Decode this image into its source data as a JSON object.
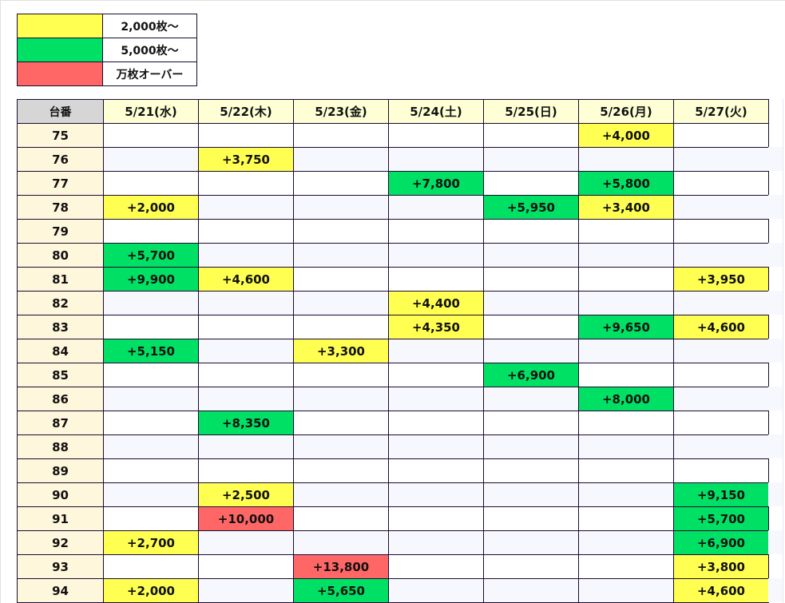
{
  "legend": [
    {
      "color": "#ffff52",
      "label": "2,000枚～"
    },
    {
      "color": "#00e064",
      "label": "5,000枚～"
    },
    {
      "color": "#ff6666",
      "label": "万枚オーバー"
    }
  ],
  "table": {
    "corner": "台番",
    "dates": [
      "5/21(水)",
      "5/22(木)",
      "5/23(金)",
      "5/24(土)",
      "5/25(日)",
      "5/26(月)",
      "5/27(火)"
    ],
    "rows": [
      {
        "no": "75",
        "cells": [
          [
            "",
            ""
          ],
          [
            "",
            ""
          ],
          [
            "",
            ""
          ],
          [
            "",
            ""
          ],
          [
            "",
            ""
          ],
          [
            "+4,000",
            "yellow"
          ],
          [
            "",
            ""
          ]
        ]
      },
      {
        "no": "76",
        "cells": [
          [
            "",
            ""
          ],
          [
            "+3,750",
            "yellow"
          ],
          [
            "",
            ""
          ],
          [
            "",
            ""
          ],
          [
            "",
            ""
          ],
          [
            "",
            ""
          ],
          [
            "",
            ""
          ]
        ]
      },
      {
        "no": "77",
        "cells": [
          [
            "",
            ""
          ],
          [
            "",
            ""
          ],
          [
            "",
            ""
          ],
          [
            "+7,800",
            "green"
          ],
          [
            "",
            ""
          ],
          [
            "+5,800",
            "green"
          ],
          [
            "",
            ""
          ]
        ]
      },
      {
        "no": "78",
        "cells": [
          [
            "+2,000",
            "yellow"
          ],
          [
            "",
            ""
          ],
          [
            "",
            ""
          ],
          [
            "",
            ""
          ],
          [
            "+5,950",
            "green"
          ],
          [
            "+3,400",
            "yellow"
          ],
          [
            "",
            ""
          ]
        ]
      },
      {
        "no": "79",
        "cells": [
          [
            "",
            ""
          ],
          [
            "",
            ""
          ],
          [
            "",
            ""
          ],
          [
            "",
            ""
          ],
          [
            "",
            ""
          ],
          [
            "",
            ""
          ],
          [
            "",
            ""
          ]
        ]
      },
      {
        "no": "80",
        "cells": [
          [
            "+5,700",
            "green"
          ],
          [
            "",
            ""
          ],
          [
            "",
            ""
          ],
          [
            "",
            ""
          ],
          [
            "",
            ""
          ],
          [
            "",
            ""
          ],
          [
            "",
            ""
          ]
        ]
      },
      {
        "no": "81",
        "cells": [
          [
            "+9,900",
            "green"
          ],
          [
            "+4,600",
            "yellow"
          ],
          [
            "",
            ""
          ],
          [
            "",
            ""
          ],
          [
            "",
            ""
          ],
          [
            "",
            ""
          ],
          [
            "+3,950",
            "yellow"
          ]
        ]
      },
      {
        "no": "82",
        "cells": [
          [
            "",
            ""
          ],
          [
            "",
            ""
          ],
          [
            "",
            ""
          ],
          [
            "+4,400",
            "yellow"
          ],
          [
            "",
            ""
          ],
          [
            "",
            ""
          ],
          [
            "",
            ""
          ]
        ]
      },
      {
        "no": "83",
        "cells": [
          [
            "",
            ""
          ],
          [
            "",
            ""
          ],
          [
            "",
            ""
          ],
          [
            "+4,350",
            "yellow"
          ],
          [
            "",
            ""
          ],
          [
            "+9,650",
            "green"
          ],
          [
            "+4,600",
            "yellow"
          ]
        ]
      },
      {
        "no": "84",
        "cells": [
          [
            "+5,150",
            "green"
          ],
          [
            "",
            ""
          ],
          [
            "+3,300",
            "yellow"
          ],
          [
            "",
            ""
          ],
          [
            "",
            ""
          ],
          [
            "",
            ""
          ],
          [
            "",
            ""
          ]
        ]
      },
      {
        "no": "85",
        "cells": [
          [
            "",
            ""
          ],
          [
            "",
            ""
          ],
          [
            "",
            ""
          ],
          [
            "",
            ""
          ],
          [
            "+6,900",
            "green"
          ],
          [
            "",
            ""
          ],
          [
            "",
            ""
          ]
        ]
      },
      {
        "no": "86",
        "cells": [
          [
            "",
            ""
          ],
          [
            "",
            ""
          ],
          [
            "",
            ""
          ],
          [
            "",
            ""
          ],
          [
            "",
            ""
          ],
          [
            "+8,000",
            "green"
          ],
          [
            "",
            ""
          ]
        ]
      },
      {
        "no": "87",
        "cells": [
          [
            "",
            ""
          ],
          [
            "+8,350",
            "green"
          ],
          [
            "",
            ""
          ],
          [
            "",
            ""
          ],
          [
            "",
            ""
          ],
          [
            "",
            ""
          ],
          [
            "",
            ""
          ]
        ]
      },
      {
        "no": "88",
        "cells": [
          [
            "",
            ""
          ],
          [
            "",
            ""
          ],
          [
            "",
            ""
          ],
          [
            "",
            ""
          ],
          [
            "",
            ""
          ],
          [
            "",
            ""
          ],
          [
            "",
            ""
          ]
        ]
      },
      {
        "no": "89",
        "cells": [
          [
            "",
            ""
          ],
          [
            "",
            ""
          ],
          [
            "",
            ""
          ],
          [
            "",
            ""
          ],
          [
            "",
            ""
          ],
          [
            "",
            ""
          ],
          [
            "",
            ""
          ]
        ]
      },
      {
        "no": "90",
        "cells": [
          [
            "",
            ""
          ],
          [
            "+2,500",
            "yellow"
          ],
          [
            "",
            ""
          ],
          [
            "",
            ""
          ],
          [
            "",
            ""
          ],
          [
            "",
            ""
          ],
          [
            "+9,150",
            "green"
          ]
        ]
      },
      {
        "no": "91",
        "cells": [
          [
            "",
            ""
          ],
          [
            "+10,000",
            "red"
          ],
          [
            "",
            ""
          ],
          [
            "",
            ""
          ],
          [
            "",
            ""
          ],
          [
            "",
            ""
          ],
          [
            "+5,700",
            "green"
          ]
        ]
      },
      {
        "no": "92",
        "cells": [
          [
            "+2,700",
            "yellow"
          ],
          [
            "",
            ""
          ],
          [
            "",
            ""
          ],
          [
            "",
            ""
          ],
          [
            "",
            ""
          ],
          [
            "",
            ""
          ],
          [
            "+6,900",
            "green"
          ]
        ]
      },
      {
        "no": "93",
        "cells": [
          [
            "",
            ""
          ],
          [
            "",
            ""
          ],
          [
            "+13,800",
            "red"
          ],
          [
            "",
            ""
          ],
          [
            "",
            ""
          ],
          [
            "",
            ""
          ],
          [
            "+3,800",
            "yellow"
          ]
        ]
      },
      {
        "no": "94",
        "cells": [
          [
            "+2,000",
            "yellow"
          ],
          [
            "",
            ""
          ],
          [
            "+5,650",
            "green"
          ],
          [
            "",
            ""
          ],
          [
            "",
            ""
          ],
          [
            "",
            ""
          ],
          [
            "+4,600",
            "yellow"
          ]
        ]
      }
    ]
  }
}
